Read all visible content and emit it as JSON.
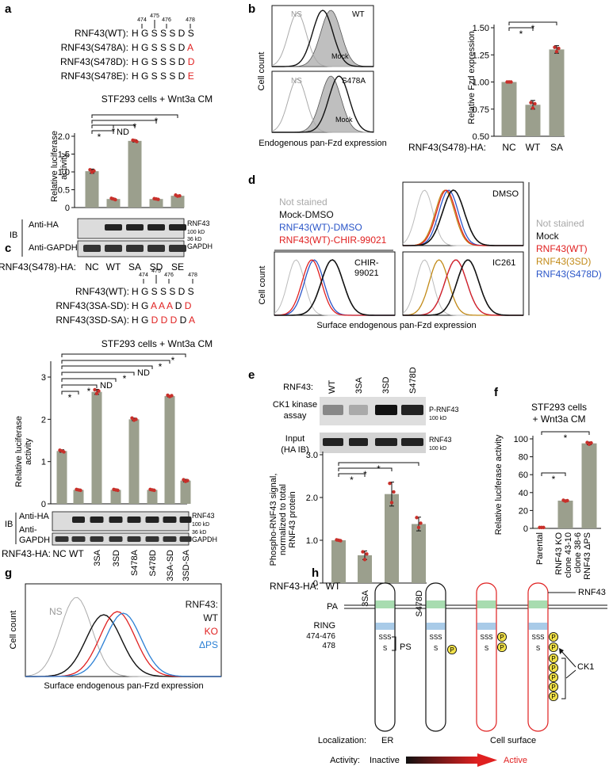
{
  "panel_labels": [
    "a",
    "b",
    "c",
    "d",
    "e",
    "f",
    "g",
    "h"
  ],
  "colors": {
    "bar": "#9b9f8d",
    "dot": "#c8302a",
    "red": "#e02020",
    "blue": "#2a55c8",
    "orange": "#c28a17",
    "green": "#a8dcb0",
    "ring": "#a9cbe8",
    "gray": "#a9a9a9",
    "star": "#f2e24a"
  },
  "a": {
    "residues": {
      "nums": [
        "474",
        "475",
        "476",
        "478"
      ],
      "rows": [
        {
          "label": "RNF43(WT):",
          "seq": "H G S S S D ",
          "last": "S",
          "last_red": false
        },
        {
          "label": "RNF43(S478A):",
          "seq": "H G S S S D ",
          "last": "A",
          "last_red": true
        },
        {
          "label": "RNF43(S478D):",
          "seq": "H G S S S D ",
          "last": "D",
          "last_red": true
        },
        {
          "label": "RNF43(S478E):",
          "seq": "H G S S S D ",
          "last": "E",
          "last_red": true
        }
      ]
    },
    "title": "STF293 cells + Wnt3a CM",
    "ylabel": [
      "Relative luciferase",
      "activity"
    ],
    "ticks": [
      "0",
      "0.5",
      "1.0",
      "1.5",
      "2.0"
    ],
    "xlabel_prefix": "RNF43(S478)-HA:",
    "star": "*",
    "nd": "ND",
    "blot": {
      "ib": "IB",
      "row1": "Anti-HA",
      "row2": "Anti-GAPDH",
      "r1": "RNF43",
      "kd1": "100 kD",
      "kd2": "36 kD",
      "r2": "GAPDH"
    }
  },
  "b": {
    "hist": {
      "ns": "NS",
      "wt": "WT",
      "mock": "Mock",
      "s478a": "S478A",
      "ylabel": "Cell count",
      "xlabel": "Endogenous pan-Fzd expression"
    },
    "ylabel": "Relative Fzd expression",
    "ticks": [
      "0.50",
      "0.75",
      "1.00",
      "1.25",
      "1.50"
    ],
    "xlabel_prefix": "RNF43(S478)-HA:",
    "star": "*"
  },
  "c": {
    "residues": {
      "nums": [
        "474",
        "475",
        "476",
        "478"
      ],
      "rows": [
        {
          "label": "RNF43(WT):",
          "seq": "H G S S S D S"
        },
        {
          "label": "RNF43(3SA-SD):",
          "seq": "H G A A A D D"
        },
        {
          "label": "RNF43(3SD-SA):",
          "seq": "H G D D D D A"
        }
      ]
    },
    "title": "STF293 cells + Wnt3a CM",
    "ylabel": [
      "Relative luciferase",
      "activity"
    ],
    "ticks": [
      "0",
      "1",
      "2",
      "3"
    ],
    "xlabel_prefix": "RNF43-HA:",
    "star": "*",
    "nd": "ND",
    "blot": {
      "ib": "IB",
      "row1": "Anti-HA",
      "row2a": "Anti-",
      "row2b": "GAPDH",
      "r1": "RNF43",
      "kd1": "100 kD",
      "kd2": "36 kD",
      "r2": "GAPDH"
    }
  },
  "d": {
    "legend_left": [
      {
        "text": "Not stained",
        "color": "#a9a9a9"
      },
      {
        "text": "Mock-DMSO",
        "color": "#111111"
      },
      {
        "text": "RNF43(WT)-DMSO",
        "color": "#2a55c8"
      },
      {
        "text": "RNF43(WT)-CHIR-99021",
        "color": "#e02020"
      }
    ],
    "legend_right": [
      {
        "text": "Not stained",
        "color": "#a9a9a9"
      },
      {
        "text": "Mock",
        "color": "#111111"
      },
      {
        "text": "RNF43(WT)",
        "color": "#e02020"
      },
      {
        "text": "RNF43(3SD)",
        "color": "#c28a17"
      },
      {
        "text": "RNF43(S478D)",
        "color": "#2a55c8"
      }
    ],
    "panels": {
      "chir": [
        "CHIR-",
        "99021"
      ],
      "dmso": "DMSO",
      "ic261": "IC261"
    },
    "ylabel": "Cell count",
    "xlabel": "Surface endogenous pan-Fzd expression"
  },
  "e": {
    "header": "RNF43:",
    "lanes": [
      "WT",
      "3SA",
      "3SD",
      "S478D"
    ],
    "row1": [
      "CK1 kinase",
      "assay"
    ],
    "row2": [
      "Input",
      "(HA IB)"
    ],
    "r1": "P-RNF43",
    "r2": "RNF43",
    "kd": "100 kD",
    "ylabel": [
      "Phospho-RNF43 signal,",
      "normalized to total",
      "RNF43 protein"
    ],
    "ticks": [
      "0",
      "1.0",
      "2.0",
      "3.0"
    ],
    "xlabel_prefix": "RNF43-HA:",
    "star": "*"
  },
  "f": {
    "title": [
      "STF293 cells",
      "+ Wnt3a CM"
    ],
    "ylabel": "Relative luciferase activity",
    "ticks": [
      "0",
      "20",
      "40",
      "60",
      "80",
      "100"
    ],
    "star": "*"
  },
  "g": {
    "ns": "NS",
    "ylabel": "Cell count",
    "xlabel": "Surface endogenous pan-Fzd expression",
    "legend": [
      {
        "text": "RNF43:",
        "color": "#111111"
      },
      {
        "text": "WT",
        "color": "#111111"
      },
      {
        "text": "KO",
        "color": "#e02020"
      },
      {
        "text": "ΔPS",
        "color": "#2a7fd4"
      }
    ]
  },
  "h": {
    "pa": "PA",
    "ring": "RING",
    "res1": "474-476",
    "res2": "478",
    "rnf43": "RNF43",
    "sss": "SSS",
    "s": "S",
    "ps": "PS",
    "p": "P",
    "ck1": "CK1",
    "localization": "Localization:",
    "er": "ER",
    "surface": "Cell surface",
    "activity": "Activity:",
    "inactive": "Inactive",
    "active": "Active"
  },
  "chart_data": [
    {
      "panel": "a",
      "type": "bar",
      "title": "STF293 cells + Wnt3a CM",
      "ylabel": "Relative luciferase activity",
      "categories": [
        "NC",
        "WT",
        "SA",
        "SD",
        "SE"
      ],
      "values": [
        1.02,
        0.24,
        1.87,
        0.24,
        0.33
      ],
      "ylim": [
        0,
        2.0
      ]
    },
    {
      "panel": "b",
      "type": "bar",
      "ylabel": "Relative Fzd expression",
      "categories": [
        "NC",
        "WT",
        "SA"
      ],
      "values": [
        1.0,
        0.79,
        1.3
      ],
      "ylim": [
        0.5,
        1.5
      ]
    },
    {
      "panel": "c",
      "type": "bar",
      "title": "STF293 cells + Wnt3a CM",
      "ylabel": "Relative luciferase activity",
      "categories": [
        "NC",
        "WT",
        "3SA",
        "3SD",
        "S478A",
        "S478D",
        "3SA-SD",
        "3SD-SA"
      ],
      "values": [
        1.25,
        0.33,
        2.65,
        0.33,
        2.0,
        0.33,
        2.55,
        0.55
      ],
      "ylim": [
        0,
        3.3
      ]
    },
    {
      "panel": "e",
      "type": "bar",
      "ylabel": "Phospho-RNF43 signal, normalized to total RNF43 protein",
      "categories": [
        "WT",
        "3SA",
        "3SD",
        "S478D"
      ],
      "values": [
        1.0,
        0.65,
        2.08,
        1.38
      ],
      "ylim": [
        0,
        3.0
      ]
    },
    {
      "panel": "f",
      "type": "bar",
      "title": "STF293 cells + Wnt3a CM",
      "ylabel": "Relative luciferase activity",
      "categories": [
        "Parental",
        "RNF43 KO clone 43-10",
        "RNF43 ΔPS clone 38-6"
      ],
      "values": [
        1,
        31,
        95
      ],
      "ylim": [
        0,
        100
      ]
    }
  ]
}
